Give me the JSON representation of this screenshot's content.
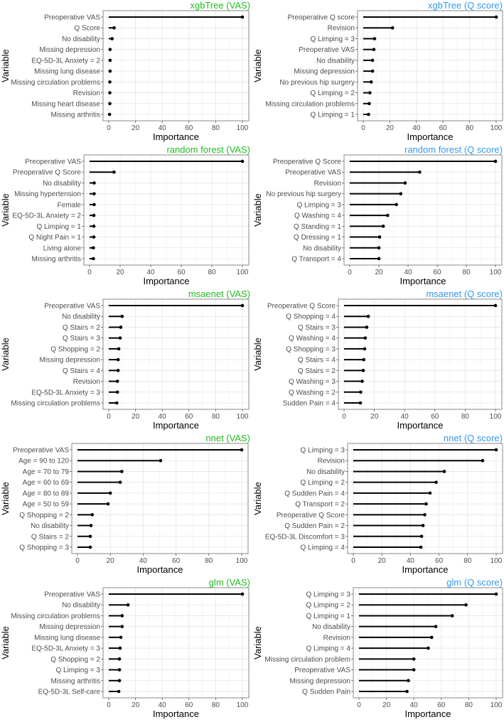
{
  "chart_data": [
    {
      "type": "bar",
      "orientation": "horizontal",
      "style": "lollipop",
      "title": "xgbTree (VAS)",
      "title_color": "#22bb22",
      "xlabel": "Importance",
      "ylabel": "Variable",
      "xlim": [
        0,
        100
      ],
      "xticks": [
        0,
        20,
        40,
        60,
        80,
        100
      ],
      "grid": true,
      "categories": [
        "Preoperative VAS",
        "Q Score",
        "No disability",
        "Missing depression",
        "EQ-5D-3L Anxiety = 2",
        "Missing lung disease",
        "Missing circulation problems",
        "Revision",
        "Missing heart disease",
        "Missing arthritis"
      ],
      "values": [
        100,
        4,
        2.5,
        1,
        1,
        1,
        0.8,
        0.8,
        0.8,
        0.6
      ]
    },
    {
      "type": "bar",
      "orientation": "horizontal",
      "style": "lollipop",
      "title": "xgbTree (Q score)",
      "title_color": "#3399ee",
      "xlabel": "Importance",
      "ylabel": "Variable",
      "xlim": [
        0,
        100
      ],
      "xticks": [
        0,
        20,
        40,
        60,
        80,
        100
      ],
      "grid": true,
      "categories": [
        "Preoperative Q score",
        "Revision",
        "Q Limping = 3",
        "Preoperative VAS",
        "No disability",
        "Missing depression",
        "No previous hip surgery",
        "Q Limping = 2",
        "Missing circulation problems",
        "Q Limping = 1"
      ],
      "values": [
        100,
        22,
        8.5,
        8,
        7,
        7,
        6,
        5,
        4.5,
        4
      ]
    },
    {
      "type": "bar",
      "orientation": "horizontal",
      "style": "lollipop",
      "title": "random forest (VAS)",
      "title_color": "#22bb22",
      "xlabel": "Importance",
      "ylabel": "Variable",
      "xlim": [
        0,
        100
      ],
      "xticks": [
        0,
        20,
        40,
        60,
        80,
        100
      ],
      "grid": true,
      "categories": [
        "Preoperative VAS",
        "Preoperative Q Score",
        "No disability",
        "Missing hypertension",
        "Female",
        "EQ-5D-3L Anxiety = 2",
        "Q Limping = 1",
        "Q Night Pain = 1",
        "Living alone",
        "Missing arthritis"
      ],
      "values": [
        100,
        16,
        3,
        3,
        3,
        2.8,
        2.8,
        2.8,
        2.5,
        2.5
      ]
    },
    {
      "type": "bar",
      "orientation": "horizontal",
      "style": "lollipop",
      "title": "random forest (Q score)",
      "title_color": "#3399ee",
      "xlabel": "Importance",
      "ylabel": "Variable",
      "xlim": [
        0,
        100
      ],
      "xticks": [
        0,
        20,
        40,
        60,
        80,
        100
      ],
      "grid": true,
      "categories": [
        "Preoperative Q Score",
        "Preoperative VAS",
        "Revision",
        "No previous hip surgery",
        "Q Limping = 3",
        "Q Washing = 4",
        "Q Standing = 1",
        "Q Dressing = 1",
        "No disability",
        "Q Transport = 4"
      ],
      "values": [
        100,
        48,
        38,
        35,
        32,
        26,
        23,
        20.5,
        20,
        20
      ]
    },
    {
      "type": "bar",
      "orientation": "horizontal",
      "style": "lollipop",
      "title": "msaenet (VAS)",
      "title_color": "#22bb22",
      "xlabel": "Importance",
      "ylabel": "Variable",
      "xlim": [
        0,
        100
      ],
      "xticks": [
        0,
        20,
        40,
        60,
        80,
        100
      ],
      "grid": true,
      "categories": [
        "Preoperative VAS",
        "No disability",
        "Q Stairs = 2",
        "Q Stairs = 3",
        "Q Shopping = 2",
        "Missing depression",
        "Q Stairs = 4",
        "Revision",
        "EQ-5D-3L Anxiety = 3",
        "Missing circulation problems"
      ],
      "values": [
        100,
        10,
        9,
        8.5,
        7.5,
        7,
        7,
        6.5,
        6.5,
        6
      ]
    },
    {
      "type": "bar",
      "orientation": "horizontal",
      "style": "lollipop",
      "title": "msaenet (Q score)",
      "title_color": "#3399ee",
      "xlabel": "Importance",
      "ylabel": "Variable",
      "xlim": [
        0,
        100
      ],
      "xticks": [
        0,
        20,
        40,
        60,
        80,
        100
      ],
      "grid": true,
      "categories": [
        "Preoperative Q Score",
        "Q Shopping = 4",
        "Q Stairs = 3",
        "Q Washing = 4",
        "Q Shopping = 3",
        "Q Stairs = 4",
        "Q Stairs = 2",
        "Q Washing = 3",
        "Q Washing = 2",
        "Sudden Pain = 4"
      ],
      "values": [
        100,
        16,
        15,
        14,
        13.6,
        13,
        12.7,
        12,
        11,
        10.8
      ]
    },
    {
      "type": "bar",
      "orientation": "horizontal",
      "style": "lollipop",
      "title": "nnet (VAS)",
      "title_color": "#22bb22",
      "xlabel": "Importance",
      "ylabel": "Variable",
      "xlim": [
        0,
        100
      ],
      "xticks": [
        0,
        20,
        40,
        60,
        80,
        100
      ],
      "grid": true,
      "categories": [
        "Preoperative VAS",
        "Age = 90 to 120",
        "Age = 70 to 79",
        "Age = 60 to 69",
        "Age = 80 to 89",
        "Age = 50 to 59",
        "Q Shopping = 2",
        "No disability",
        "Q Stairs = 2",
        "Q Shopping = 3"
      ],
      "values": [
        100,
        50.6,
        27,
        26,
        20,
        18.6,
        9,
        8.2,
        7.8,
        7.8
      ]
    },
    {
      "type": "bar",
      "orientation": "horizontal",
      "style": "lollipop",
      "title": "nnet (Q score)",
      "title_color": "#3399ee",
      "xlabel": "Importance",
      "ylabel": "Variable",
      "xlim": [
        0,
        100
      ],
      "xticks": [
        0,
        20,
        40,
        60,
        80,
        100
      ],
      "grid": true,
      "categories": [
        "Q Limping = 3",
        "Revision",
        "No disability",
        "Q Limping = 2",
        "Q Sudden Pain = 4",
        "Q Transport = 2",
        "Preoperative Q Score",
        "Q Sudden Pain = 2",
        "EQ-5D-3L Discomfort = 3",
        "Q Limping = 4"
      ],
      "values": [
        100,
        90.5,
        63.7,
        58,
        53.7,
        51,
        50,
        48.8,
        47.8,
        47.3
      ]
    },
    {
      "type": "bar",
      "orientation": "horizontal",
      "style": "lollipop",
      "title": "glm (VAS)",
      "title_color": "#22bb22",
      "xlabel": "Importance",
      "ylabel": "Variable",
      "xlim": [
        0,
        100
      ],
      "xticks": [
        0,
        20,
        40,
        60,
        80,
        100
      ],
      "grid": true,
      "categories": [
        "Preoperative VAS",
        "No disability",
        "Missing circulation problems",
        "Missing depression",
        "Missing lung disease",
        "EQ-5D-3L Anxiety = 3",
        "Q Shopping = 2",
        "Q Limping = 3",
        "Missing arthritis",
        "EQ-5D-3L Self-care"
      ],
      "values": [
        100,
        14.4,
        10,
        10,
        9,
        8.5,
        8,
        8,
        8,
        7.5
      ]
    },
    {
      "type": "bar",
      "orientation": "horizontal",
      "style": "lollipop",
      "title": "glm (Q score)",
      "title_color": "#3399ee",
      "xlabel": "Importance",
      "ylabel": "Variable",
      "xlim": [
        0,
        100
      ],
      "xticks": [
        0,
        20,
        40,
        60,
        80,
        100
      ],
      "grid": true,
      "categories": [
        "Q Limping = 3",
        "Q Limping = 2",
        "Q Limping = 1",
        "No disability",
        "Revision",
        "Q Limping = 4",
        "Missing circulation problem",
        "Preoperative VAS",
        "Missing depression",
        "Q Sudden Pain"
      ],
      "values": [
        100,
        78,
        68,
        56,
        53,
        50.5,
        40,
        40,
        36,
        35
      ]
    }
  ]
}
